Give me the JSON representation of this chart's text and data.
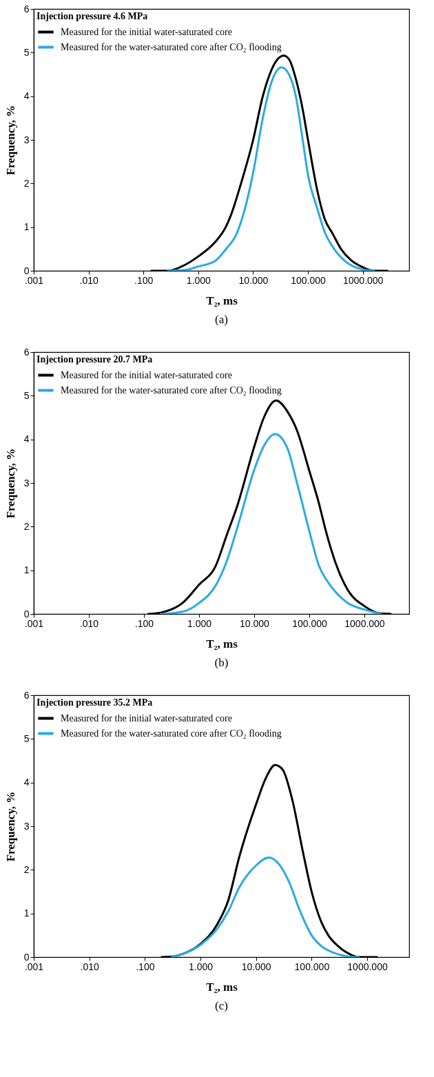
{
  "chart_data": [
    {
      "type": "line",
      "legend_title": "Injection pressure  4.6 MPa",
      "xlabel": "T₂, ms",
      "ylabel": "Frequency, %",
      "annotations": [
        "(a)"
      ],
      "log": "x",
      "grid": false,
      "legend": "top left",
      "line_style": "solid",
      "marker": "none",
      "xlim": [
        0.001,
        7000
      ],
      "xticks": [
        {
          "value": 0.001,
          "label": ".001"
        },
        {
          "value": 0.01,
          "label": ".010"
        },
        {
          "value": 0.1,
          "label": ".100"
        },
        {
          "value": 1,
          "label": "1.000"
        },
        {
          "value": 10,
          "label": "10.000"
        },
        {
          "value": 100,
          "label": "100.000"
        },
        {
          "value": 1000,
          "label": "1000.000"
        }
      ],
      "ylim": [
        0,
        6
      ],
      "yticks": [
        0,
        1,
        2,
        3,
        4,
        5,
        6
      ],
      "series": [
        {
          "name": "Measured for the initial water-saturated core",
          "color": "#000000",
          "x": [
            0.14,
            0.28,
            0.5,
            1.0,
            2.0,
            3.16,
            4,
            6,
            10,
            15,
            20,
            28,
            36,
            45,
            60,
            80,
            100,
            150,
            200,
            282,
            400,
            600,
            1000,
            1600,
            2800
          ],
          "values": [
            0,
            0,
            0.1,
            0.33,
            0.65,
            1.0,
            1.3,
            2.0,
            3.0,
            4.0,
            4.5,
            4.85,
            4.93,
            4.85,
            4.4,
            3.7,
            3.0,
            1.8,
            1.2,
            0.85,
            0.5,
            0.25,
            0.08,
            0,
            0
          ]
        },
        {
          "name": "Measured for the water-saturated core after CO₂ flooding",
          "color": "#29abe2",
          "x": [
            0.28,
            0.6,
            1.0,
            2,
            3.16,
            5,
            7,
            10,
            15,
            22,
            33,
            45,
            60,
            80,
            100,
            150,
            200,
            300,
            500,
            1000,
            1600
          ],
          "values": [
            0,
            0.02,
            0.1,
            0.22,
            0.49,
            0.85,
            1.4,
            2.25,
            3.5,
            4.35,
            4.66,
            4.5,
            4.0,
            3.0,
            2.2,
            1.4,
            0.9,
            0.5,
            0.2,
            0.03,
            0
          ]
        }
      ]
    },
    {
      "type": "line",
      "legend_title": "Injection pressure  20.7 MPa",
      "xlabel": "T₂, ms",
      "ylabel": "Frequency, %",
      "annotations": [
        "(b)"
      ],
      "log": "x",
      "grid": false,
      "legend": "top left",
      "line_style": "solid",
      "marker": "none",
      "xlim": [
        0.001,
        6500
      ],
      "xticks": [
        {
          "value": 0.001,
          "label": ".001"
        },
        {
          "value": 0.01,
          "label": ".010"
        },
        {
          "value": 0.1,
          "label": ".100"
        },
        {
          "value": 1,
          "label": "1.000"
        },
        {
          "value": 10,
          "label": "10.000"
        },
        {
          "value": 100,
          "label": "100.000"
        },
        {
          "value": 1000,
          "label": "1000.000"
        }
      ],
      "ylim": [
        0,
        6
      ],
      "yticks": [
        0,
        1,
        2,
        3,
        4,
        5,
        6
      ],
      "series": [
        {
          "name": "Measured for the initial water-saturated core",
          "color": "#000000",
          "x": [
            0.12,
            0.2,
            0.5,
            1.0,
            2.0,
            3.16,
            5,
            10,
            15,
            25,
            40,
            60,
            100,
            150,
            200,
            300,
            500,
            1000,
            2000,
            3000
          ],
          "values": [
            0,
            0.03,
            0.25,
            0.67,
            1.1,
            1.8,
            2.5,
            3.83,
            4.5,
            4.89,
            4.64,
            4.2,
            3.28,
            2.53,
            1.9,
            1.17,
            0.55,
            0.18,
            0.01,
            0
          ]
        },
        {
          "name": "Measured for the water-saturated core after CO₂ flooding",
          "color": "#29abe2",
          "x": [
            0.2,
            0.5,
            1.0,
            2,
            3.16,
            5,
            10,
            15,
            24,
            40,
            60,
            100,
            150,
            200,
            300,
            500,
            1000,
            2000
          ],
          "values": [
            0,
            0.05,
            0.25,
            0.65,
            1.2,
            2.0,
            3.3,
            3.85,
            4.12,
            3.8,
            3.0,
            1.9,
            1.1,
            0.8,
            0.5,
            0.25,
            0.1,
            0
          ]
        }
      ]
    },
    {
      "type": "line",
      "legend_title": "Injection pressure  35.2 MPa",
      "xlabel": "T₂, ms",
      "ylabel": "Frequency, %",
      "annotations": [
        "(c)"
      ],
      "log": "x",
      "grid": false,
      "legend": "top left",
      "line_style": "solid",
      "marker": "none",
      "xlim": [
        0.001,
        5700
      ],
      "xticks": [
        {
          "value": 0.001,
          "label": ".001"
        },
        {
          "value": 0.01,
          "label": ".010"
        },
        {
          "value": 0.1,
          "label": ".100"
        },
        {
          "value": 1,
          "label": "1.000"
        },
        {
          "value": 10,
          "label": "10.000"
        },
        {
          "value": 100,
          "label": "100.000"
        },
        {
          "value": 1000,
          "label": "1000.000"
        }
      ],
      "ylim": [
        0,
        6
      ],
      "yticks": [
        0,
        1,
        2,
        3,
        4,
        5,
        6
      ],
      "series": [
        {
          "name": "Measured for the initial water-saturated core",
          "color": "#000000",
          "x": [
            0.2,
            0.3,
            0.5,
            1.0,
            2,
            3.16,
            5,
            10,
            15,
            22,
            30,
            45,
            70,
            100,
            150,
            200,
            300,
            500,
            700,
            1500
          ],
          "values": [
            0,
            0.01,
            0.08,
            0.3,
            0.75,
            1.3,
            2.3,
            3.5,
            4.1,
            4.4,
            4.3,
            3.6,
            2.4,
            1.5,
            0.8,
            0.5,
            0.25,
            0.06,
            0,
            0
          ]
        },
        {
          "name": "Measured for the water-saturated core after CO₂ flooding",
          "color": "#29abe2",
          "x": [
            0.3,
            0.5,
            1.0,
            2,
            3.16,
            5,
            10,
            17,
            25,
            40,
            60,
            100,
            150,
            250,
            500,
            700
          ],
          "values": [
            0,
            0.08,
            0.28,
            0.65,
            1.05,
            1.6,
            2.1,
            2.28,
            2.15,
            1.7,
            1.1,
            0.5,
            0.25,
            0.1,
            0.01,
            0
          ]
        }
      ]
    }
  ]
}
